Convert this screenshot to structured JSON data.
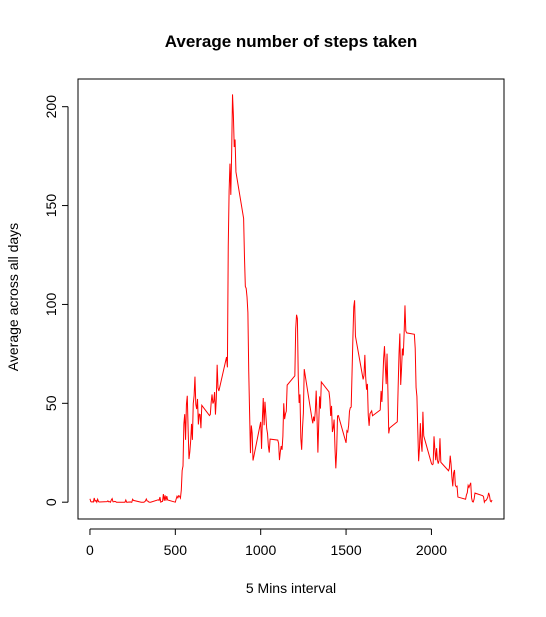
{
  "chart_data": {
    "type": "line",
    "title": "Average number of steps taken",
    "xlabel": "5 Mins interval",
    "ylabel": "Average across all days",
    "xlim": [
      -70,
      2425
    ],
    "ylim": [
      -8.5,
      214
    ],
    "xticks": [
      0,
      500,
      1000,
      1500,
      2000
    ],
    "yticks": [
      0,
      50,
      100,
      150,
      200
    ],
    "grid": false,
    "line_color": "#ff0000",
    "series": [
      {
        "points": [
          [
            0,
            1.7
          ],
          [
            5,
            0.3
          ],
          [
            10,
            0.1
          ],
          [
            15,
            0.2
          ],
          [
            20,
            0.1
          ],
          [
            25,
            2.1
          ],
          [
            30,
            0.5
          ],
          [
            35,
            0.9
          ],
          [
            40,
            0
          ],
          [
            45,
            1.5
          ],
          [
            50,
            0.3
          ],
          [
            55,
            0.1
          ],
          [
            100,
            0.3
          ],
          [
            105,
            0.7
          ],
          [
            110,
            0.2
          ],
          [
            115,
            0.3
          ],
          [
            120,
            0
          ],
          [
            125,
            1.1
          ],
          [
            130,
            1.8
          ],
          [
            135,
            0.2
          ],
          [
            140,
            0.2
          ],
          [
            145,
            0.4
          ],
          [
            150,
            0.3
          ],
          [
            155,
            0
          ],
          [
            200,
            0
          ],
          [
            205,
            0
          ],
          [
            210,
            1.1
          ],
          [
            215,
            0
          ],
          [
            220,
            0
          ],
          [
            225,
            0.1
          ],
          [
            230,
            0
          ],
          [
            235,
            0.2
          ],
          [
            240,
            0
          ],
          [
            245,
            0
          ],
          [
            250,
            1.5
          ],
          [
            255,
            0.9
          ],
          [
            300,
            0
          ],
          [
            305,
            0
          ],
          [
            310,
            0
          ],
          [
            315,
            0
          ],
          [
            320,
            0.2
          ],
          [
            325,
            0.6
          ],
          [
            330,
            1.6
          ],
          [
            335,
            0.6
          ],
          [
            340,
            0.5
          ],
          [
            345,
            0.1
          ],
          [
            350,
            0
          ],
          [
            355,
            0
          ],
          [
            400,
            1.2
          ],
          [
            405,
            0.9
          ],
          [
            410,
            2.6
          ],
          [
            415,
            0
          ],
          [
            420,
            0.3
          ],
          [
            425,
            0.4
          ],
          [
            430,
            4.1
          ],
          [
            435,
            0.7
          ],
          [
            440,
            3.5
          ],
          [
            445,
            0.8
          ],
          [
            450,
            3.1
          ],
          [
            455,
            1.1
          ],
          [
            500,
            0
          ],
          [
            505,
            1.6
          ],
          [
            510,
            3
          ],
          [
            515,
            2.2
          ],
          [
            520,
            3.3
          ],
          [
            525,
            3
          ],
          [
            530,
            2.1
          ],
          [
            535,
            6.1
          ],
          [
            540,
            16
          ],
          [
            545,
            18.3
          ],
          [
            550,
            39.5
          ],
          [
            555,
            44.5
          ],
          [
            560,
            31.5
          ],
          [
            565,
            49.3
          ],
          [
            570,
            53.8
          ],
          [
            575,
            36.8
          ],
          [
            580,
            21.8
          ],
          [
            585,
            25.5
          ],
          [
            590,
            31.2
          ],
          [
            595,
            39.6
          ],
          [
            600,
            31.5
          ],
          [
            605,
            49.9
          ],
          [
            610,
            53.8
          ],
          [
            615,
            63.5
          ],
          [
            620,
            49.5
          ],
          [
            625,
            47.1
          ],
          [
            630,
            52.2
          ],
          [
            635,
            39.3
          ],
          [
            640,
            44.5
          ],
          [
            645,
            44.3
          ],
          [
            650,
            37.4
          ],
          [
            655,
            49
          ],
          [
            700,
            43.8
          ],
          [
            705,
            44.4
          ],
          [
            710,
            50.5
          ],
          [
            715,
            54.5
          ],
          [
            720,
            49.9
          ],
          [
            725,
            50.9
          ],
          [
            730,
            55.7
          ],
          [
            735,
            44.3
          ],
          [
            740,
            52.3
          ],
          [
            745,
            69.5
          ],
          [
            750,
            57.8
          ],
          [
            755,
            56.2
          ],
          [
            800,
            73.4
          ],
          [
            805,
            68.2
          ],
          [
            810,
            129.4
          ],
          [
            815,
            157.5
          ],
          [
            820,
            171.2
          ],
          [
            825,
            155.4
          ],
          [
            830,
            177.3
          ],
          [
            835,
            206.2
          ],
          [
            840,
            195.9
          ],
          [
            845,
            179.6
          ],
          [
            850,
            183.4
          ],
          [
            855,
            167
          ],
          [
            900,
            143.5
          ],
          [
            905,
            124
          ],
          [
            910,
            109.1
          ],
          [
            915,
            108.1
          ],
          [
            920,
            103.7
          ],
          [
            925,
            95.9
          ],
          [
            930,
            66.2
          ],
          [
            935,
            45.2
          ],
          [
            940,
            24.8
          ],
          [
            945,
            38.8
          ],
          [
            950,
            34.98
          ],
          [
            955,
            21.06
          ],
          [
            1000,
            40.6
          ],
          [
            1005,
            26.98
          ],
          [
            1010,
            42.4
          ],
          [
            1015,
            52.7
          ],
          [
            1020,
            38.9
          ],
          [
            1025,
            50.8
          ],
          [
            1030,
            44.3
          ],
          [
            1035,
            37.4
          ],
          [
            1040,
            34.7
          ],
          [
            1045,
            28.3
          ],
          [
            1050,
            25.1
          ],
          [
            1055,
            31.9
          ],
          [
            1100,
            31.4
          ],
          [
            1105,
            29.7
          ],
          [
            1110,
            21.3
          ],
          [
            1115,
            25.5
          ],
          [
            1120,
            28.4
          ],
          [
            1125,
            26.5
          ],
          [
            1130,
            33.4
          ],
          [
            1135,
            50
          ],
          [
            1140,
            42
          ],
          [
            1145,
            44.6
          ],
          [
            1150,
            46
          ],
          [
            1155,
            59.2
          ],
          [
            1200,
            63.9
          ],
          [
            1205,
            87.7
          ],
          [
            1210,
            94.8
          ],
          [
            1215,
            92.8
          ],
          [
            1220,
            63.4
          ],
          [
            1225,
            50.2
          ],
          [
            1230,
            54.5
          ],
          [
            1235,
            32.4
          ],
          [
            1240,
            26.5
          ],
          [
            1245,
            37.7
          ],
          [
            1250,
            45.1
          ],
          [
            1255,
            67.3
          ],
          [
            1300,
            42.3
          ],
          [
            1305,
            39.9
          ],
          [
            1310,
            43.3
          ],
          [
            1315,
            40.98
          ],
          [
            1320,
            46.2
          ],
          [
            1325,
            56.4
          ],
          [
            1330,
            42.8
          ],
          [
            1335,
            25.1
          ],
          [
            1340,
            39.96
          ],
          [
            1345,
            53.5
          ],
          [
            1350,
            47.3
          ],
          [
            1355,
            60.8
          ],
          [
            1400,
            55.8
          ],
          [
            1405,
            51.96
          ],
          [
            1410,
            43.6
          ],
          [
            1415,
            48.7
          ],
          [
            1420,
            35.5
          ],
          [
            1425,
            37.6
          ],
          [
            1430,
            41.8
          ],
          [
            1435,
            27.5
          ],
          [
            1440,
            17.1
          ],
          [
            1445,
            26.1
          ],
          [
            1450,
            43.6
          ],
          [
            1455,
            43.8
          ],
          [
            1500,
            30
          ],
          [
            1505,
            36.1
          ],
          [
            1510,
            35.5
          ],
          [
            1515,
            38.8
          ],
          [
            1520,
            45.96
          ],
          [
            1525,
            47.8
          ],
          [
            1530,
            48.1
          ],
          [
            1535,
            65.3
          ],
          [
            1540,
            82.9
          ],
          [
            1545,
            98.7
          ],
          [
            1550,
            102.1
          ],
          [
            1555,
            83.96
          ],
          [
            1600,
            62.1
          ],
          [
            1605,
            64.1
          ],
          [
            1610,
            74.5
          ],
          [
            1615,
            63.2
          ],
          [
            1620,
            56.9
          ],
          [
            1625,
            59.8
          ],
          [
            1630,
            43.9
          ],
          [
            1635,
            38.6
          ],
          [
            1640,
            44.7
          ],
          [
            1645,
            45.5
          ],
          [
            1650,
            46.2
          ],
          [
            1655,
            43.7
          ],
          [
            1700,
            46.6
          ],
          [
            1705,
            56.3
          ],
          [
            1710,
            50.7
          ],
          [
            1715,
            61.2
          ],
          [
            1720,
            72.7
          ],
          [
            1725,
            78.9
          ],
          [
            1730,
            68.9
          ],
          [
            1735,
            59.7
          ],
          [
            1740,
            75.1
          ],
          [
            1745,
            56.5
          ],
          [
            1750,
            34.8
          ],
          [
            1755,
            37.5
          ],
          [
            1800,
            40.7
          ],
          [
            1805,
            58
          ],
          [
            1810,
            74.7
          ],
          [
            1815,
            85.3
          ],
          [
            1820,
            59.3
          ],
          [
            1825,
            67.8
          ],
          [
            1830,
            77.7
          ],
          [
            1835,
            74.2
          ],
          [
            1840,
            85.3
          ],
          [
            1845,
            99.5
          ],
          [
            1850,
            86.6
          ],
          [
            1855,
            85.6
          ],
          [
            1900,
            84.9
          ],
          [
            1905,
            77.8
          ],
          [
            1910,
            58
          ],
          [
            1915,
            53.4
          ],
          [
            1920,
            36.3
          ],
          [
            1925,
            20.7
          ],
          [
            1930,
            27.4
          ],
          [
            1935,
            40
          ],
          [
            1940,
            30.2
          ],
          [
            1945,
            25.5
          ],
          [
            1950,
            45.7
          ],
          [
            1955,
            33.5
          ],
          [
            2000,
            19.6
          ],
          [
            2005,
            19
          ],
          [
            2010,
            19.3
          ],
          [
            2015,
            33.3
          ],
          [
            2020,
            26.8
          ],
          [
            2025,
            21.2
          ],
          [
            2030,
            27.3
          ],
          [
            2035,
            21.3
          ],
          [
            2040,
            19.5
          ],
          [
            2045,
            21.3
          ],
          [
            2050,
            32.3
          ],
          [
            2055,
            20.2
          ],
          [
            2100,
            15.9
          ],
          [
            2105,
            17.2
          ],
          [
            2110,
            23.5
          ],
          [
            2115,
            19.2
          ],
          [
            2120,
            12.5
          ],
          [
            2125,
            8
          ],
          [
            2130,
            14.7
          ],
          [
            2135,
            16.3
          ],
          [
            2140,
            8.7
          ],
          [
            2145,
            7.8
          ],
          [
            2150,
            8.1
          ],
          [
            2155,
            2.6
          ],
          [
            2200,
            1.5
          ],
          [
            2205,
            3.7
          ],
          [
            2210,
            4.8
          ],
          [
            2215,
            8.5
          ],
          [
            2220,
            7.5
          ],
          [
            2225,
            8.7
          ],
          [
            2230,
            9.8
          ],
          [
            2235,
            2.2
          ],
          [
            2240,
            0.3
          ],
          [
            2245,
            0.1
          ],
          [
            2250,
            1.6
          ],
          [
            2255,
            4.6
          ],
          [
            2300,
            3.3
          ],
          [
            2305,
            2.8
          ],
          [
            2310,
            0
          ],
          [
            2315,
            0.8
          ],
          [
            2320,
            0.96
          ],
          [
            2325,
            1.6
          ],
          [
            2330,
            2.6
          ],
          [
            2335,
            4.7
          ],
          [
            2340,
            3.3
          ],
          [
            2345,
            0.6
          ],
          [
            2350,
            0.2
          ],
          [
            2355,
            1.1
          ]
        ]
      }
    ]
  }
}
